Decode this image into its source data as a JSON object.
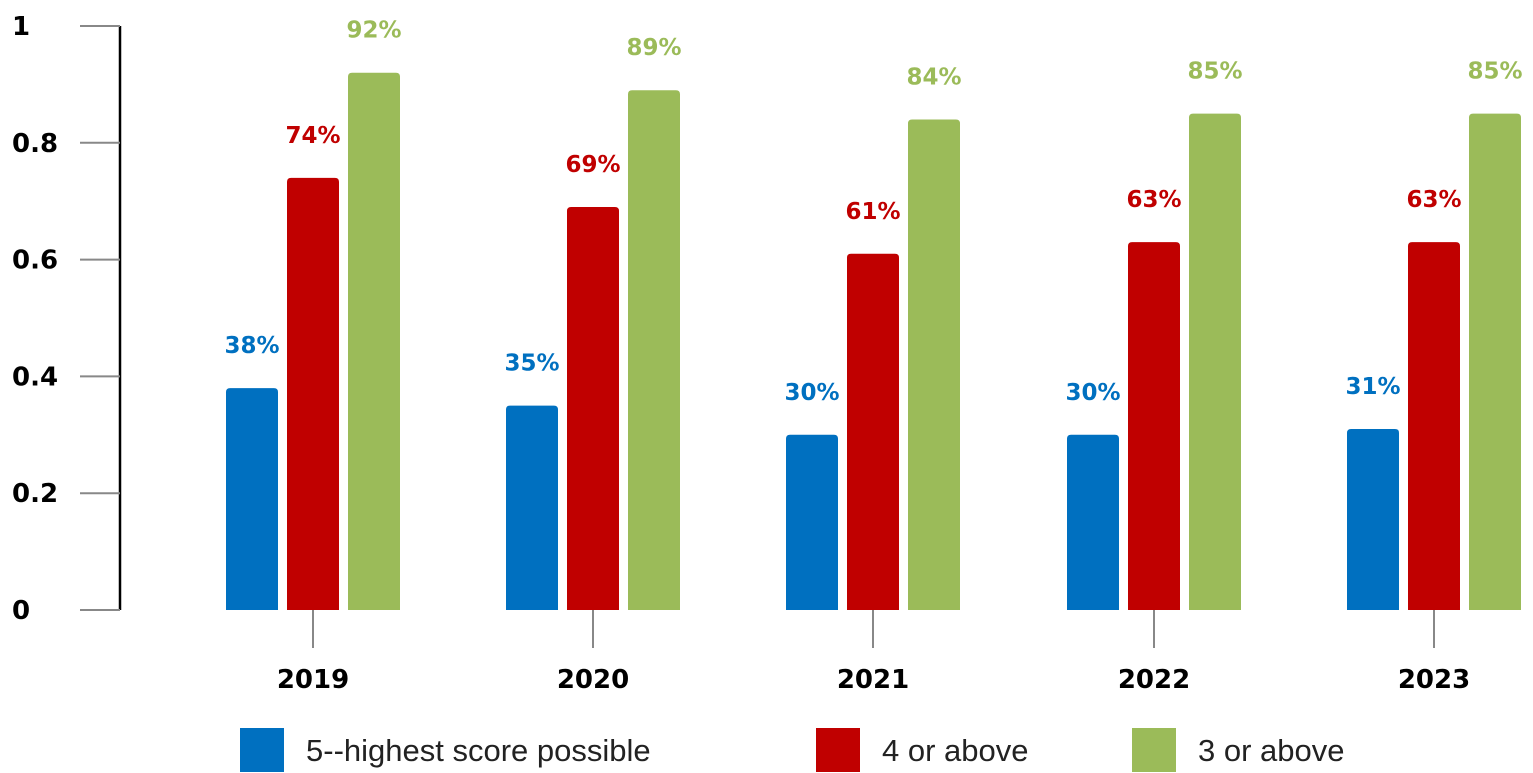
{
  "chart_data": {
    "type": "bar",
    "categories": [
      "2019",
      "2020",
      "2021",
      "2022",
      "2023"
    ],
    "series": [
      {
        "name": "5--highest score possible",
        "color": "#0070c0",
        "values": [
          0.38,
          0.35,
          0.3,
          0.3,
          0.31
        ],
        "labels": [
          "38%",
          "35%",
          "30%",
          "30%",
          "31%"
        ]
      },
      {
        "name": "4 or above",
        "color": "#c00000",
        "values": [
          0.74,
          0.69,
          0.61,
          0.63,
          0.63
        ],
        "labels": [
          "74%",
          "69%",
          "61%",
          "63%",
          "63%"
        ]
      },
      {
        "name": "3 or above",
        "color": "#9bbb59",
        "values": [
          0.92,
          0.89,
          0.84,
          0.85,
          0.85
        ],
        "labels": [
          "92%",
          "89%",
          "84%",
          "85%",
          "85%"
        ]
      }
    ],
    "yticks": [
      0,
      0.2,
      0.4,
      0.6,
      0.8,
      1
    ],
    "ytick_labels": [
      "0",
      "0.2",
      "0.4",
      "0.6",
      "0.8",
      "1"
    ],
    "ylim": [
      0,
      1
    ],
    "title": "",
    "xlabel": "",
    "ylabel": "",
    "grid": false,
    "legend_position": "bottom"
  }
}
